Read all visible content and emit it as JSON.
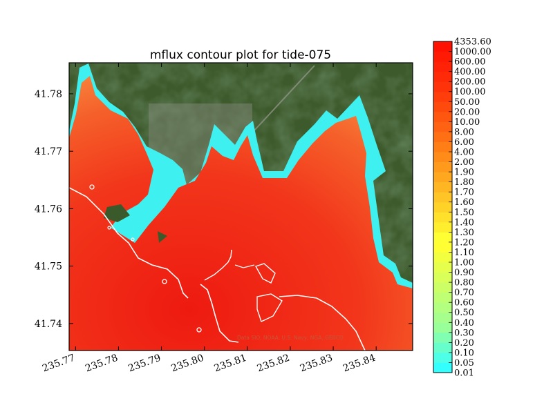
{
  "chart_data": {
    "type": "heatmap",
    "title": "mflux contour plot for tide-075",
    "xlabel": "",
    "ylabel": "",
    "x_ticks": [
      "235.77",
      "235.78",
      "235.79",
      "235.80",
      "235.81",
      "235.82",
      "235.83",
      "235.84"
    ],
    "x_tick_values": [
      235.77,
      235.78,
      235.79,
      235.8,
      235.81,
      235.82,
      235.83,
      235.84
    ],
    "y_ticks": [
      "41.74",
      "41.75",
      "41.76",
      "41.77",
      "41.78"
    ],
    "y_tick_values": [
      41.74,
      41.75,
      41.76,
      41.77,
      41.78
    ],
    "xlim": [
      235.7685,
      235.8485
    ],
    "ylim": [
      41.7353,
      41.7854
    ],
    "grid": false,
    "basemap_attribution": "Data SIO, NOAA, U.S. Navy, NGA, GEBCO",
    "colorbar": {
      "position": "right",
      "levels": [
        "0.01",
        "0.05",
        "0.10",
        "0.20",
        "0.30",
        "0.40",
        "0.50",
        "0.60",
        "0.70",
        "0.80",
        "0.90",
        "1.00",
        "1.10",
        "1.20",
        "1.30",
        "1.40",
        "1.50",
        "1.60",
        "1.70",
        "1.80",
        "1.90",
        "2.00",
        "4.00",
        "6.00",
        "8.00",
        "10.00",
        "20.00",
        "50.00",
        "100.00",
        "200.00",
        "400.00",
        "600.00",
        "1000.00",
        "4353.60"
      ],
      "colors": [
        "#33ffff",
        "#4dffe6",
        "#66ffcc",
        "#80ffb3",
        "#99ff99",
        "#a6ff8c",
        "#b3ff80",
        "#bfff73",
        "#ccff66",
        "#d9ff59",
        "#e6ff4d",
        "#f2ff40",
        "#ffff33",
        "#ffff33",
        "#ffee2e",
        "#ffe02b",
        "#ffd228",
        "#ffc425",
        "#ffb622",
        "#ffa81f",
        "#ff9a1c",
        "#ff8c19",
        "#ff7e16",
        "#ff7014",
        "#ff6212",
        "#ff5610",
        "#ff4a0e",
        "#ff3e0c",
        "#ff330a",
        "#ff2a08",
        "#ff2206",
        "#ff1a04",
        "#ff1202"
      ]
    }
  }
}
